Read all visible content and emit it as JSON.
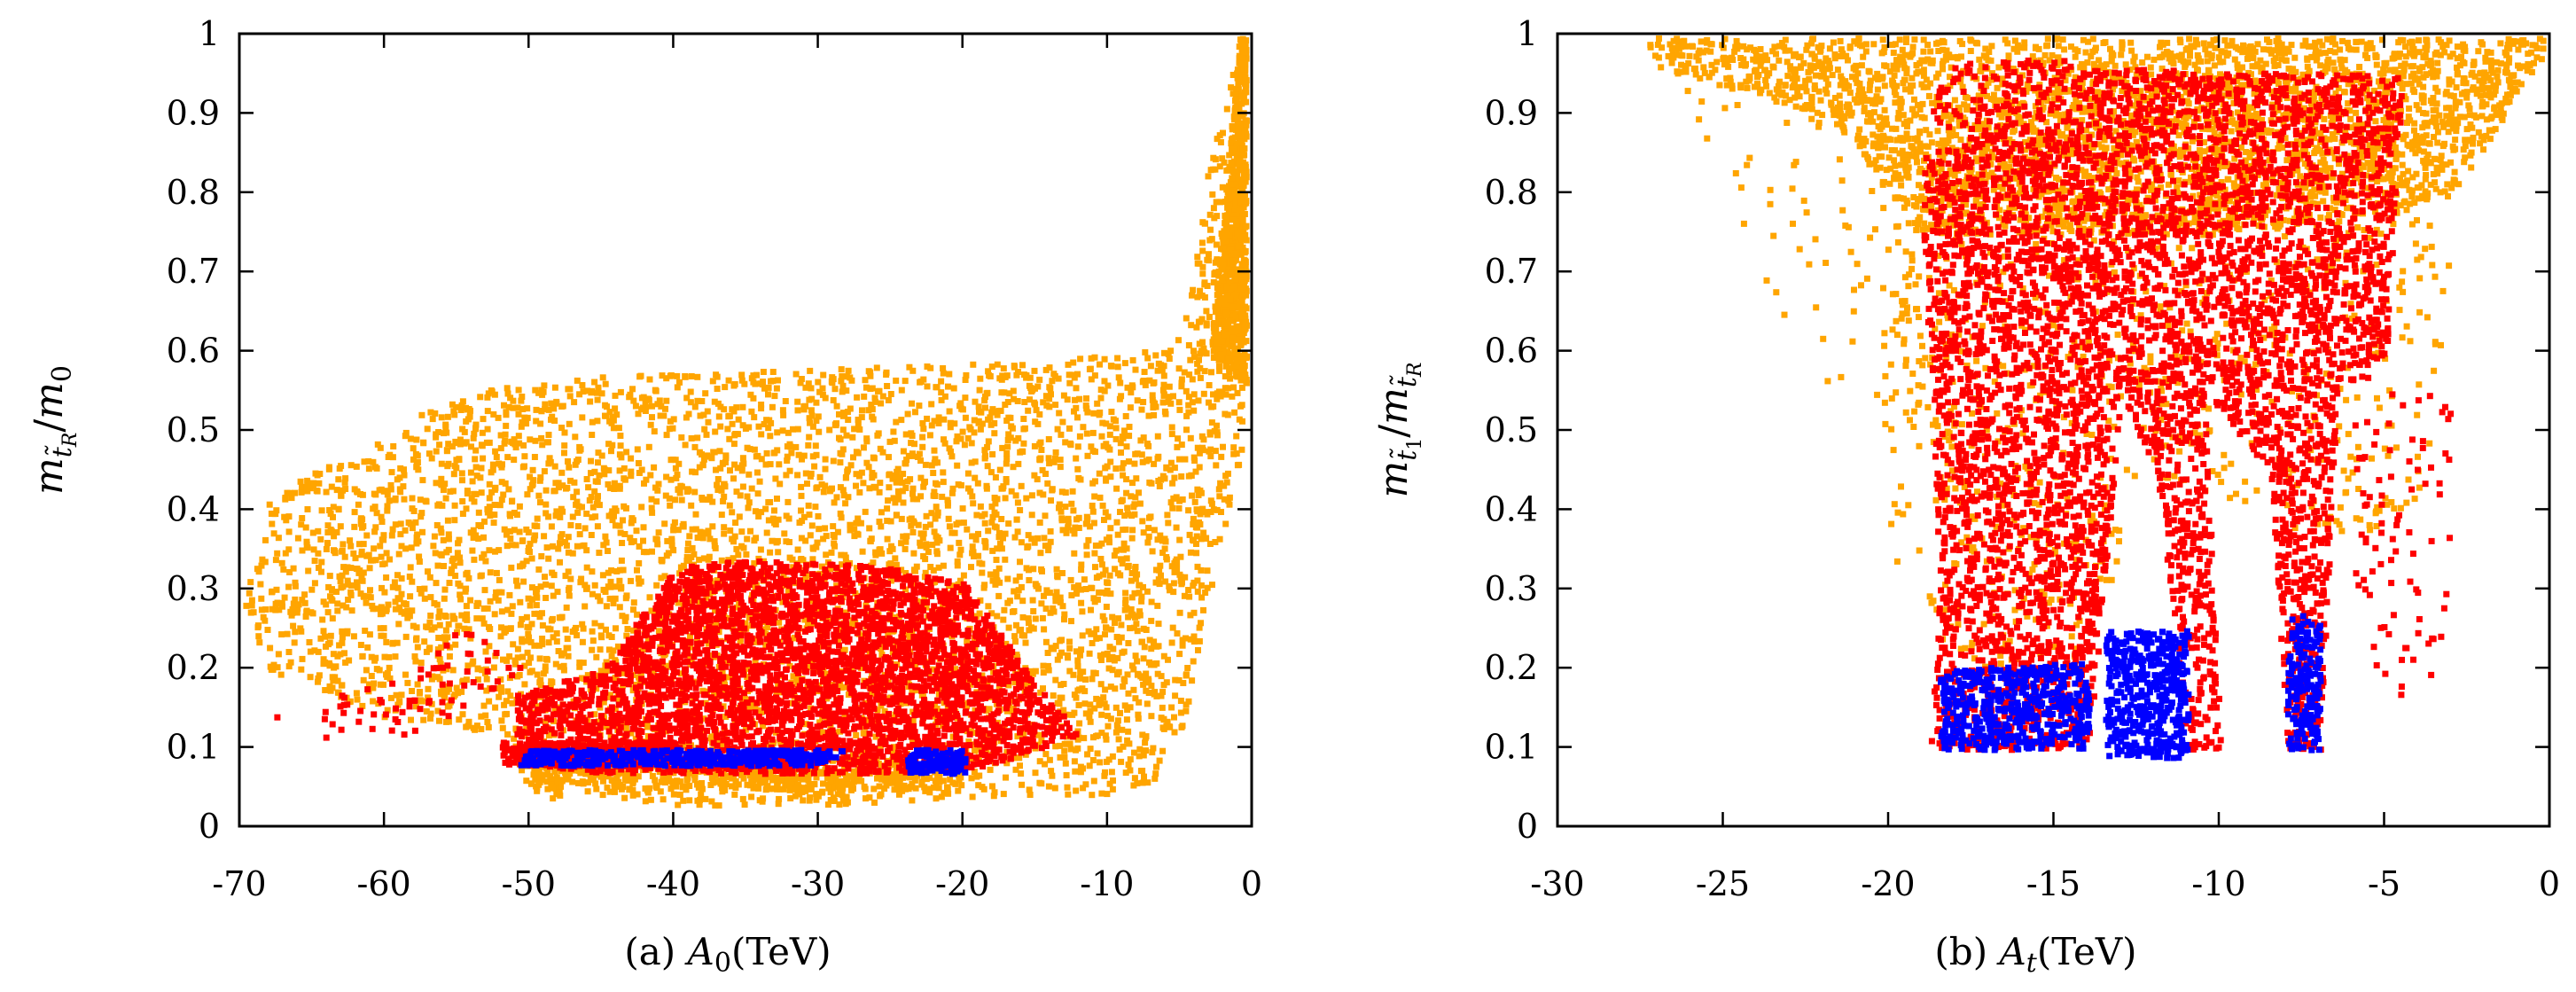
{
  "colors": {
    "orange": "#ffa500",
    "red": "#ff0000",
    "blue": "#0000ff",
    "frame": "#000000"
  },
  "chart_data": [
    {
      "type": "scatter",
      "caption": "(a)  A₀(TeV)",
      "xlabel": "A₀(TeV)",
      "ylabel": "m t̃R / m₀",
      "xlim": [
        -70,
        0
      ],
      "ylim": [
        0,
        1
      ],
      "x_ticks": [
        "-70",
        "-60",
        "-50",
        "-40",
        "-30",
        "-20",
        "-10",
        "0"
      ],
      "y_ticks": [
        "0",
        "0.1",
        "0.2",
        "0.3",
        "0.4",
        "0.5",
        "0.6",
        "0.7",
        "0.8",
        "0.9",
        "1"
      ],
      "grid": false,
      "series": [
        {
          "color": "orange",
          "regions": [
            {
              "xy": [
                [
                  -70,
                  0.28
                ],
                [
                  -68,
                  0.42
                ],
                [
                  -58,
                  0.52
                ],
                [
                  -52,
                  0.56
                ],
                [
                  -46,
                  0.57
                ],
                [
                  -30,
                  0.58
                ],
                [
                  -15,
                  0.59
                ],
                [
                  -8,
                  0.6
                ],
                [
                  -5,
                  0.62
                ],
                [
                  -3,
                  0.85
                ],
                [
                  -1,
                  1.0
                ],
                [
                  0,
                  1.0
                ],
                [
                  0,
                  0.55
                ],
                [
                  -3,
                  0.3
                ],
                [
                  -5,
                  0.12
                ],
                [
                  -7,
                  0.06
                ],
                [
                  -10,
                  0.04
                ],
                [
                  -20,
                  0.04
                ],
                [
                  -30,
                  0.03
                ],
                [
                  -40,
                  0.03
                ],
                [
                  -50,
                  0.04
                ],
                [
                  -52,
                  0.12
                ],
                [
                  -60,
                  0.14
                ],
                [
                  -68,
                  0.2
                ]
              ],
              "n": 5000
            },
            {
              "xy": [
                [
                  -3,
                  0.6
                ],
                [
                  -1,
                  1.0
                ],
                [
                  0,
                  1.0
                ],
                [
                  0,
                  0.55
                ]
              ],
              "n": 700
            },
            {
              "xy": [
                [
                  -50,
                  0.05
                ],
                [
                  -20,
                  0.05
                ],
                [
                  -20,
                  0.09
                ],
                [
                  -50,
                  0.09
                ]
              ],
              "n": 500
            }
          ]
        },
        {
          "color": "red",
          "regions": [
            {
              "xy": [
                [
                  -51,
                  0.1
                ],
                [
                  -51,
                  0.17
                ],
                [
                  -45,
                  0.2
                ],
                [
                  -40,
                  0.33
                ],
                [
                  -35,
                  0.34
                ],
                [
                  -25,
                  0.33
                ],
                [
                  -20,
                  0.31
                ],
                [
                  -15,
                  0.18
                ],
                [
                  -12,
                  0.12
                ],
                [
                  -18,
                  0.08
                ],
                [
                  -25,
                  0.07
                ],
                [
                  -35,
                  0.07
                ],
                [
                  -45,
                  0.07
                ],
                [
                  -50,
                  0.08
                ]
              ],
              "n": 3800
            },
            {
              "xy": [
                [
                  -52,
                  0.08
                ],
                [
                  -40,
                  0.08
                ],
                [
                  -40,
                  0.11
                ],
                [
                  -52,
                  0.11
                ]
              ],
              "n": 400
            },
            {
              "xy": [
                [
                  -68,
                  0.14
                ],
                [
                  -58,
                  0.2
                ],
                [
                  -55,
                  0.26
                ],
                [
                  -50,
                  0.2
                ],
                [
                  -55,
                  0.14
                ],
                [
                  -62,
                  0.1
                ]
              ],
              "n": 70
            }
          ]
        },
        {
          "color": "blue",
          "regions": [
            {
              "xy": [
                [
                  -51,
                  0.08
                ],
                [
                  -30,
                  0.08
                ],
                [
                  -28,
                  0.1
                ],
                [
                  -50,
                  0.1
                ]
              ],
              "n": 450
            },
            {
              "xy": [
                [
                  -24,
                  0.07
                ],
                [
                  -20,
                  0.07
                ],
                [
                  -20,
                  0.1
                ],
                [
                  -24,
                  0.1
                ]
              ],
              "n": 120
            }
          ]
        }
      ]
    },
    {
      "type": "scatter",
      "caption": "(b)  A_t(TeV)",
      "xlabel": "A_t(TeV)",
      "ylabel": "m t̃1 / m t̃R",
      "xlim": [
        -30,
        0
      ],
      "ylim": [
        0,
        1
      ],
      "x_ticks": [
        "-30",
        "-25",
        "-20",
        "-15",
        "-10",
        "-5",
        "0"
      ],
      "y_ticks": [
        "0",
        "0.1",
        "0.2",
        "0.3",
        "0.4",
        "0.5",
        "0.6",
        "0.7",
        "0.8",
        "0.9",
        "1"
      ],
      "grid": false,
      "series": [
        {
          "color": "orange",
          "regions": [
            {
              "xy": [
                [
                  -27.5,
                  0.99
                ],
                [
                  -27,
                  0.96
                ],
                [
                  -22,
                  0.9
                ],
                [
                  -19,
                  0.75
                ],
                [
                  -10,
                  0.75
                ],
                [
                  -5,
                  0.78
                ],
                [
                  -3,
                  0.8
                ],
                [
                  0,
                  0.99
                ],
                [
                  0,
                  1.0
                ],
                [
                  -27.5,
                  1.0
                ]
              ],
              "n": 3000
            },
            {
              "xy": [
                [
                  -20,
                  0.35
                ],
                [
                  -18,
                  0.2
                ],
                [
                  -14,
                  0.2
                ],
                [
                  -13,
                  0.35
                ],
                [
                  -12,
                  0.4
                ],
                [
                  -9,
                  0.4
                ],
                [
                  -7,
                  0.35
                ],
                [
                  -4,
                  0.4
                ],
                [
                  -3,
                  0.7
                ],
                [
                  -5,
                  0.9
                ],
                [
                  -20,
                  0.9
                ]
              ],
              "n": 900
            },
            {
              "xy": [
                [
                  -27,
                  0.95
                ],
                [
                  -22,
                  0.55
                ],
                [
                  -20,
                  0.5
                ],
                [
                  -18,
                  0.7
                ],
                [
                  -20,
                  0.95
                ]
              ],
              "n": 90
            }
          ]
        },
        {
          "color": "red",
          "regions": [
            {
              "xy": [
                [
                  -19,
                  0.75
                ],
                [
                  -18.5,
                  0.3
                ],
                [
                  -18.8,
                  0.1
                ],
                [
                  -14,
                  0.1
                ],
                [
                  -13,
                  0.55
                ],
                [
                  -12,
                  0.45
                ],
                [
                  -11,
                  0.1
                ],
                [
                  -10,
                  0.1
                ],
                [
                  -10.5,
                  0.55
                ],
                [
                  -8.5,
                  0.45
                ],
                [
                  -8,
                  0.1
                ],
                [
                  -7,
                  0.1
                ],
                [
                  -6.5,
                  0.55
                ],
                [
                  -5,
                  0.6
                ],
                [
                  -4.5,
                  0.95
                ],
                [
                  -14,
                  0.96
                ],
                [
                  -16,
                  0.9
                ],
                [
                  -19,
                  0.85
                ]
              ],
              "n": 5200
            },
            {
              "xy": [
                [
                  -19,
                  0.9
                ],
                [
                  -17,
                  0.86
                ],
                [
                  -16,
                  0.9
                ],
                [
                  -14,
                  0.97
                ],
                [
                  -18,
                  0.97
                ]
              ],
              "n": 120
            },
            {
              "xy": [
                [
                  -6,
                  0.6
                ],
                [
                  -3,
                  0.55
                ],
                [
                  -3,
                  0.2
                ],
                [
                  -5,
                  0.15
                ],
                [
                  -6,
                  0.3
                ]
              ],
              "n": 90
            }
          ]
        },
        {
          "color": "blue",
          "regions": [
            {
              "xy": [
                [
                  -18.5,
                  0.1
                ],
                [
                  -14,
                  0.1
                ],
                [
                  -14,
                  0.21
                ],
                [
                  -18.5,
                  0.2
                ]
              ],
              "n": 500
            },
            {
              "xy": [
                [
                  -13.5,
                  0.09
                ],
                [
                  -11,
                  0.09
                ],
                [
                  -11,
                  0.25
                ],
                [
                  -13.5,
                  0.25
                ]
              ],
              "n": 450
            },
            {
              "xy": [
                [
                  -8,
                  0.1
                ],
                [
                  -7,
                  0.1
                ],
                [
                  -7,
                  0.27
                ],
                [
                  -8,
                  0.27
                ]
              ],
              "n": 180
            }
          ]
        }
      ]
    }
  ]
}
